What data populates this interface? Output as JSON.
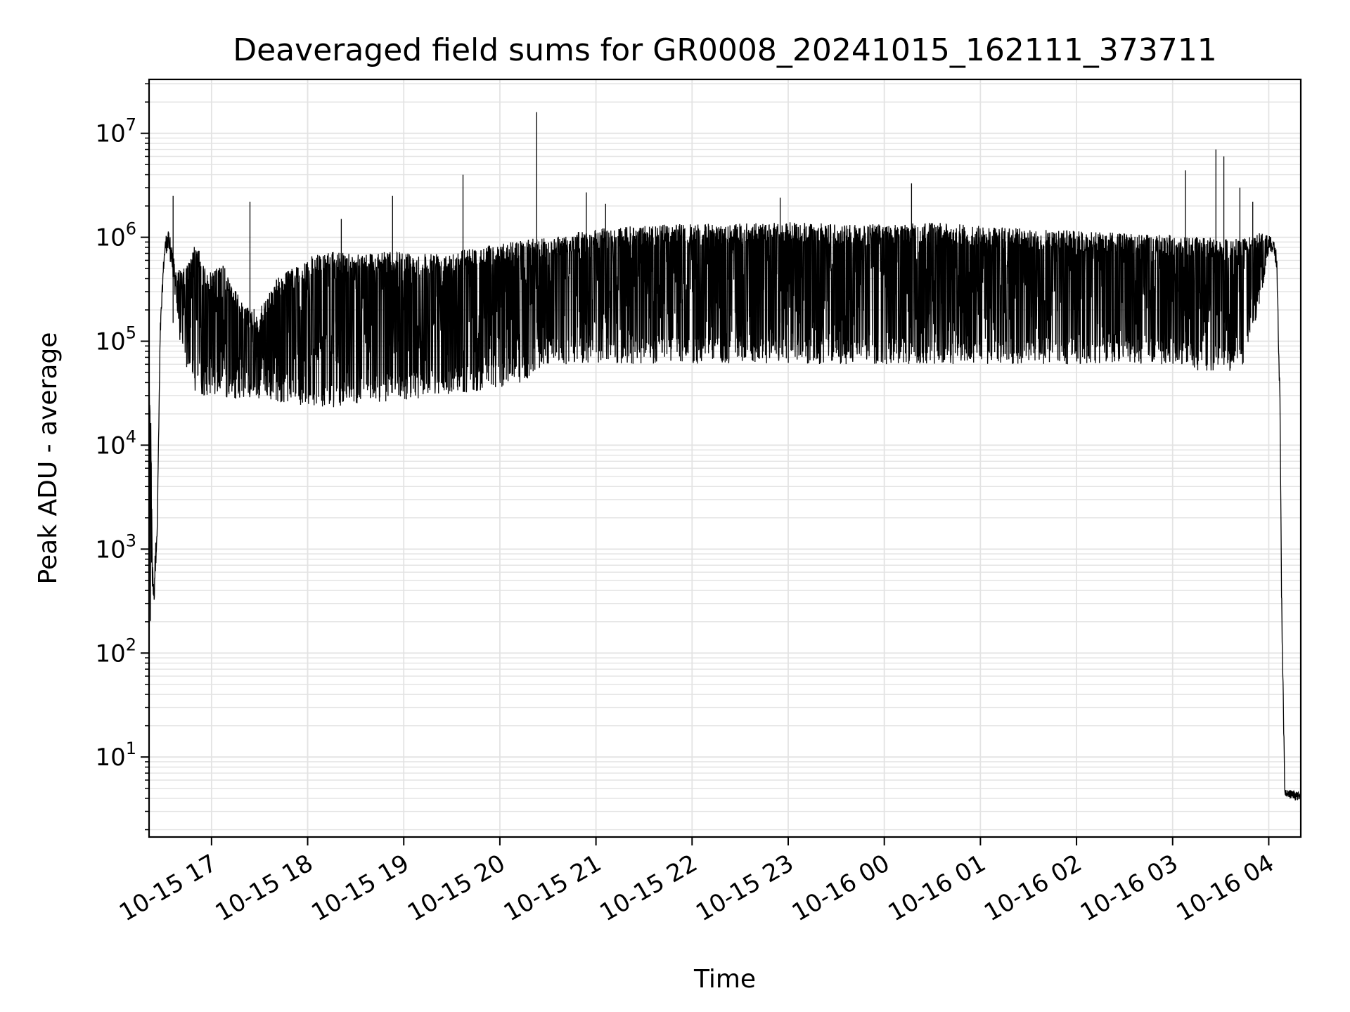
{
  "chart_data": {
    "type": "line",
    "title": "Deaveraged field sums for GR0008_20241015_162111_373711",
    "xlabel": "Time",
    "ylabel": "Peak ADU - average",
    "yscale": "log",
    "grid": true,
    "legend": "none",
    "line_color": "#000000",
    "grid_color": "#e3e3e3",
    "xlim": [
      "2024-10-15 16:21",
      "2024-10-16 04:20"
    ],
    "ylim": [
      1.7,
      33000000
    ],
    "x_ticks": [
      {
        "label": "10-15 17",
        "time": "2024-10-15 17:00"
      },
      {
        "label": "10-15 18",
        "time": "2024-10-15 18:00"
      },
      {
        "label": "10-15 19",
        "time": "2024-10-15 19:00"
      },
      {
        "label": "10-15 20",
        "time": "2024-10-15 20:00"
      },
      {
        "label": "10-15 21",
        "time": "2024-10-15 21:00"
      },
      {
        "label": "10-15 22",
        "time": "2024-10-15 22:00"
      },
      {
        "label": "10-15 23",
        "time": "2024-10-15 23:00"
      },
      {
        "label": "10-16 00",
        "time": "2024-10-16 00:00"
      },
      {
        "label": "10-16 01",
        "time": "2024-10-16 01:00"
      },
      {
        "label": "10-16 02",
        "time": "2024-10-16 02:00"
      },
      {
        "label": "10-16 03",
        "time": "2024-10-16 03:00"
      },
      {
        "label": "10-16 04",
        "time": "2024-10-16 04:00"
      }
    ],
    "y_ticks": [
      {
        "base": "10",
        "exp": "1",
        "value": 10
      },
      {
        "base": "10",
        "exp": "2",
        "value": 100
      },
      {
        "base": "10",
        "exp": "3",
        "value": 1000
      },
      {
        "base": "10",
        "exp": "4",
        "value": 10000
      },
      {
        "base": "10",
        "exp": "5",
        "value": 100000
      },
      {
        "base": "10",
        "exp": "6",
        "value": 1000000
      },
      {
        "base": "10",
        "exp": "7",
        "value": 10000000
      }
    ],
    "series": [
      {
        "x": [
          "2024-10-15 16:21",
          "2024-10-15 16:22",
          "2024-10-15 16:23",
          "2024-10-15 16:24",
          "2024-10-15 16:25",
          "2024-10-15 16:26",
          "2024-10-15 16:28",
          "2024-10-15 16:30",
          "2024-10-15 16:31",
          "2024-10-15 16:32",
          "2024-10-15 16:34",
          "2024-10-15 16:36",
          "2024-10-15 16:38",
          "2024-10-15 16:40",
          "2024-10-15 16:43",
          "2024-10-15 16:46",
          "2024-10-15 16:48",
          "2024-10-15 16:50",
          "2024-10-15 16:55",
          "2024-10-15 17:00",
          "2024-10-15 17:05",
          "2024-10-15 17:10",
          "2024-10-15 17:20",
          "2024-10-15 17:30",
          "2024-10-15 17:40",
          "2024-10-15 17:50",
          "2024-10-15 18:00",
          "2024-10-15 18:15",
          "2024-10-15 18:30",
          "2024-10-15 18:45",
          "2024-10-15 19:00",
          "2024-10-15 19:15",
          "2024-10-15 19:30",
          "2024-10-15 19:45",
          "2024-10-15 20:00",
          "2024-10-15 20:15",
          "2024-10-15 20:30",
          "2024-10-15 20:45",
          "2024-10-15 21:00",
          "2024-10-15 21:30",
          "2024-10-15 22:00",
          "2024-10-15 22:30",
          "2024-10-15 23:00",
          "2024-10-15 23:30",
          "2024-10-16 00:00",
          "2024-10-16 00:30",
          "2024-10-16 01:00",
          "2024-10-16 01:30",
          "2024-10-16 02:00",
          "2024-10-16 02:30",
          "2024-10-16 03:00",
          "2024-10-16 03:20",
          "2024-10-16 03:35",
          "2024-10-16 03:45",
          "2024-10-16 03:55",
          "2024-10-16 04:00",
          "2024-10-16 04:03",
          "2024-10-16 04:05",
          "2024-10-16 04:07",
          "2024-10-16 04:08",
          "2024-10-16 04:09",
          "2024-10-16 04:10",
          "2024-10-16 04:20"
        ],
        "upper": [
          38000,
          35000,
          800,
          700,
          1200,
          1400,
          150000,
          600000,
          900000,
          1200000,
          1100000,
          700000,
          450000,
          500000,
          500000,
          600000,
          700000,
          950000,
          550000,
          450000,
          650000,
          450000,
          220000,
          200000,
          400000,
          500000,
          650000,
          720000,
          720000,
          720000,
          720000,
          720000,
          750000,
          800000,
          870000,
          950000,
          1000000,
          1100000,
          1200000,
          1300000,
          1350000,
          1350000,
          1400000,
          1350000,
          1350000,
          1400000,
          1300000,
          1200000,
          1150000,
          1100000,
          1050000,
          1000000,
          1000000,
          1050000,
          1100000,
          1050000,
          950000,
          700000,
          30000,
          500,
          50,
          5,
          4.5
        ],
        "lower": [
          28000,
          150,
          400,
          250,
          600,
          1200,
          100000,
          450000,
          700000,
          700000,
          600000,
          400000,
          200000,
          100000,
          60000,
          50000,
          40000,
          32000,
          30000,
          30000,
          30000,
          28000,
          28000,
          27000,
          26000,
          25000,
          24000,
          23000,
          25000,
          26000,
          27000,
          29000,
          31000,
          33000,
          36000,
          40000,
          60000,
          60000,
          60000,
          60000,
          60000,
          60000,
          60000,
          60000,
          60000,
          60000,
          60000,
          60000,
          60000,
          60000,
          60000,
          50000,
          50000,
          60000,
          250000,
          700000,
          700000,
          500000,
          20000,
          300,
          30,
          4,
          3.8
        ]
      }
    ]
  }
}
